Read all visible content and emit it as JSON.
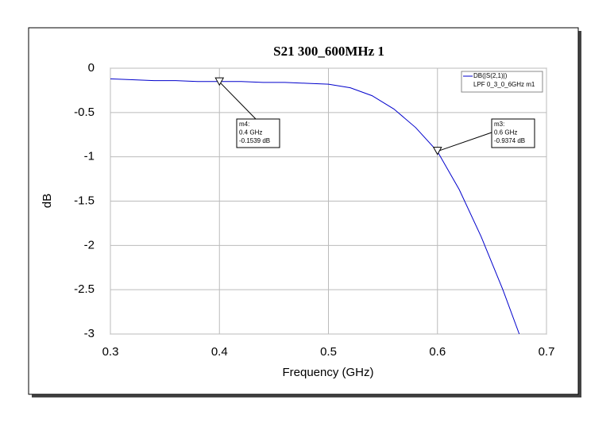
{
  "chart_data": {
    "type": "line",
    "title": "S21 300_600MHz 1",
    "x_label": "Frequency (GHz)",
    "y_label": "dB",
    "x": [
      0.3,
      0.32,
      0.34,
      0.36,
      0.38,
      0.4,
      0.42,
      0.44,
      0.46,
      0.48,
      0.5,
      0.52,
      0.54,
      0.56,
      0.58,
      0.6,
      0.62,
      0.64,
      0.66,
      0.675
    ],
    "series": [
      {
        "name": "DB(|S(2,1)|)",
        "subname": "LPF 0_3_0_6GHz m1",
        "color": "#0000cc",
        "values": [
          -0.12,
          -0.13,
          -0.14,
          -0.14,
          -0.15,
          -0.15,
          -0.15,
          -0.16,
          -0.16,
          -0.17,
          -0.18,
          -0.22,
          -0.31,
          -0.46,
          -0.67,
          -0.94,
          -1.37,
          -1.9,
          -2.5,
          -3.0
        ]
      }
    ],
    "xlim": [
      0.3,
      0.7
    ],
    "xticks": [
      0.3,
      0.4,
      0.5,
      0.6,
      0.7
    ],
    "ylim": [
      -3,
      0
    ],
    "yticks": [
      0,
      -0.5,
      -1,
      -1.5,
      -2,
      -2.5,
      -3
    ],
    "grid": true,
    "legend_position": "upper right",
    "markers": [
      {
        "x": 0.4,
        "y": -0.1539,
        "lines": [
          "m4:",
          "0.4 GHz",
          "-0.1539 dB"
        ]
      },
      {
        "x": 0.6,
        "y": -0.9374,
        "lines": [
          "m3:",
          "0.6 GHz",
          "-0.9374 dB"
        ]
      }
    ]
  }
}
